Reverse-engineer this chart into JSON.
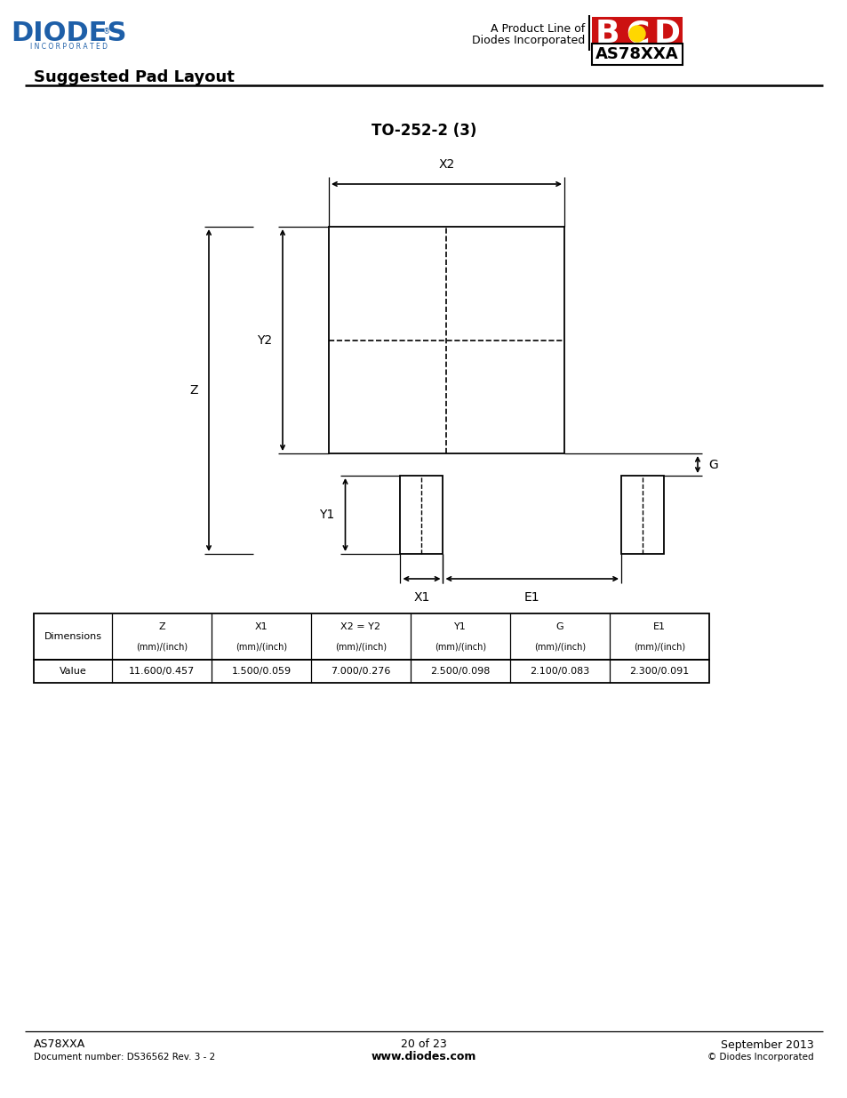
{
  "title": "TO-252-2 (3)",
  "page_title": "Suggested Pad Layout",
  "header_line1": "A Product Line of",
  "header_line2": "Diodes Incorporated",
  "chip_name": "AS78XXA",
  "footer_left1": "AS78XXA",
  "footer_left2": "Document number: DS36562 Rev. 3 - 2",
  "footer_center1": "20 of 23",
  "footer_center2": "www.diodes.com",
  "footer_right1": "September 2013",
  "footer_right2": "© Diodes Incorporated",
  "table_headers": [
    "Dimensions",
    "Z\n(mm)/(inch)",
    "X1\n(mm)/(inch)",
    "X2 = Y2\n(mm)/(inch)",
    "Y1\n(mm)/(inch)",
    "G\n(mm)/(inch)",
    "E1\n(mm)/(inch)"
  ],
  "table_row": [
    "Value",
    "11.600/0.457",
    "1.500/0.059",
    "7.000/0.276",
    "2.500/0.098",
    "2.100/0.083",
    "2.300/0.091"
  ],
  "bg_color": "#ffffff",
  "line_color": "#000000",
  "diodes_blue": "#1e5fa8",
  "bcd_red": "#cc1111"
}
